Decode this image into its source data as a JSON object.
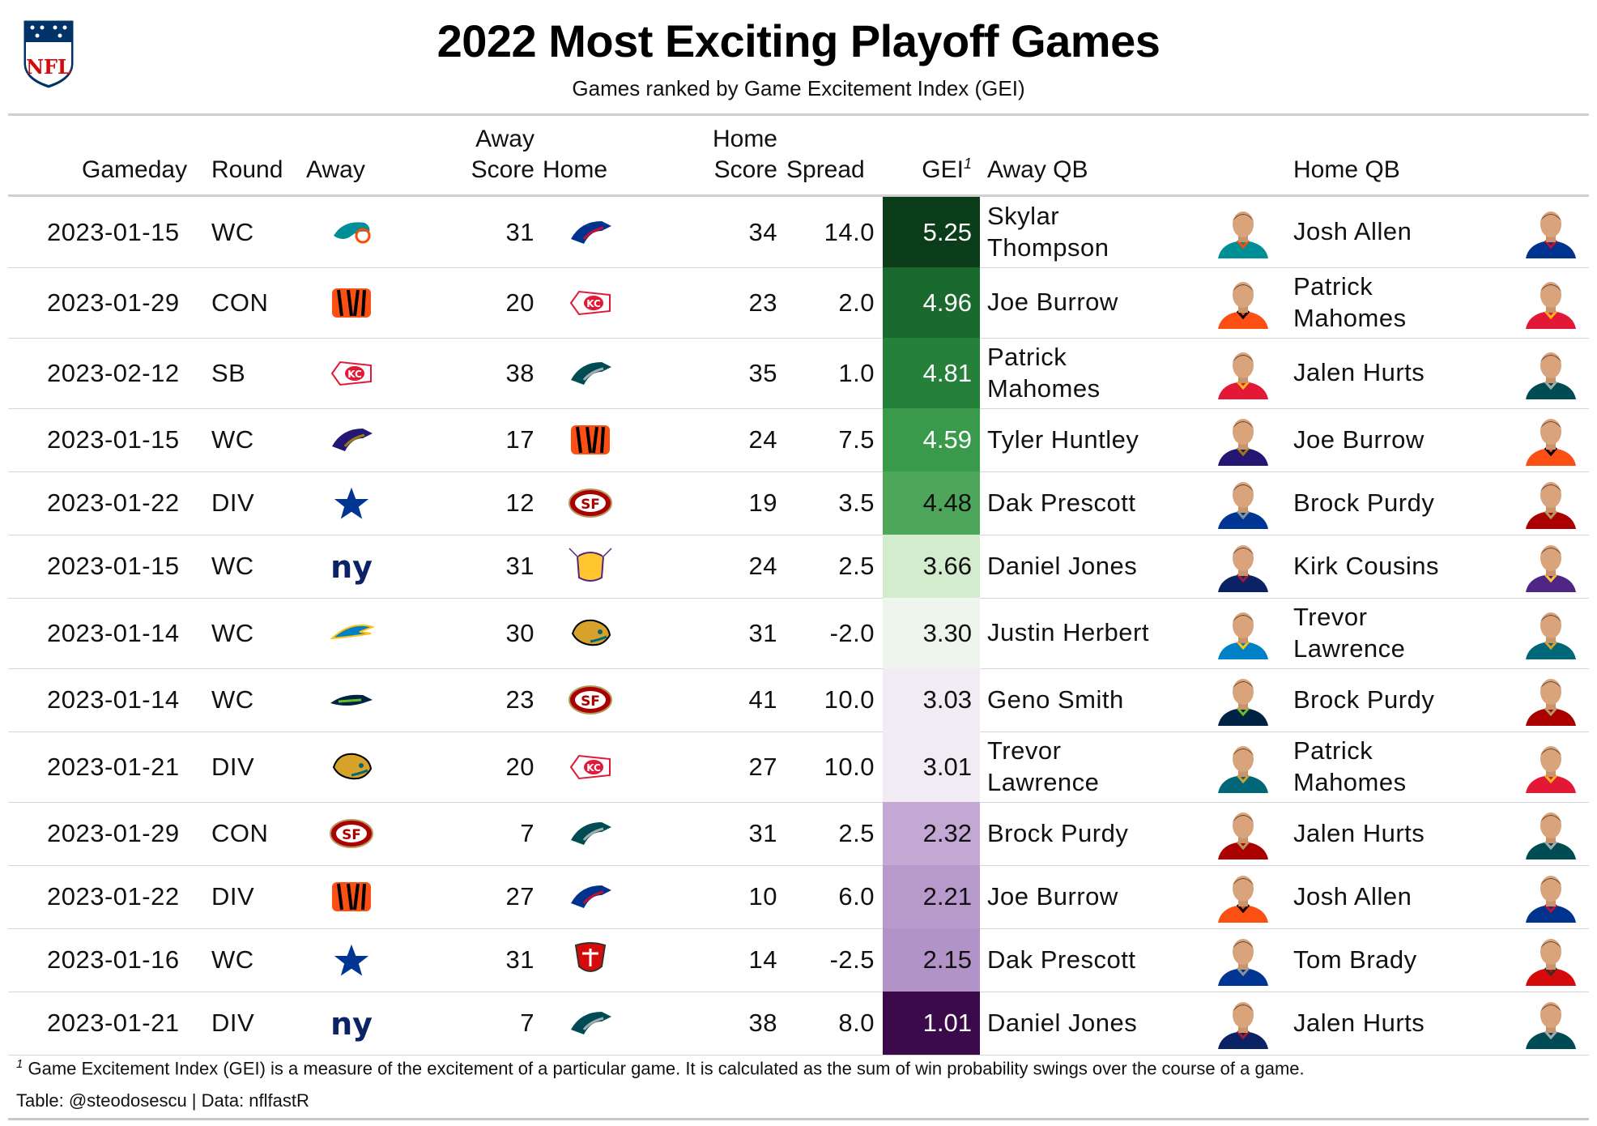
{
  "title": "2022 Most Exciting Playoff Games",
  "subtitle": "Games ranked by Game Excitement Index (GEI)",
  "logo_text": "NFL",
  "columns": {
    "gameday": "Gameday",
    "round": "Round",
    "away": "Away",
    "away_score_1": "Away",
    "away_score_2": "Score",
    "home": "Home",
    "home_score_1": "Home",
    "home_score_2": "Score",
    "spread": "Spread",
    "gei": "GEI",
    "gei_note": "1",
    "away_qb": "Away QB",
    "home_qb": "Home QB"
  },
  "rows": [
    {
      "gameday": "2023-01-15",
      "round": "WC",
      "away": "MIA",
      "away_score": "31",
      "home": "BUF",
      "home_score": "34",
      "spread": "14.0",
      "gei": "5.25",
      "gei_bg": "#0b3d1a",
      "gei_fg": "#ffffff",
      "away_qb": [
        "Skylar",
        "Thompson"
      ],
      "home_qb": [
        "Josh Allen"
      ],
      "away_qb_team": "MIA",
      "home_qb_team": "BUF"
    },
    {
      "gameday": "2023-01-29",
      "round": "CON",
      "away": "CIN",
      "away_score": "20",
      "home": "KC",
      "home_score": "23",
      "spread": "2.0",
      "gei": "4.96",
      "gei_bg": "#1a6a2f",
      "gei_fg": "#ffffff",
      "away_qb": [
        "Joe Burrow"
      ],
      "home_qb": [
        "Patrick",
        "Mahomes"
      ],
      "away_qb_team": "CIN",
      "home_qb_team": "KC"
    },
    {
      "gameday": "2023-02-12",
      "round": "SB",
      "away": "KC",
      "away_score": "38",
      "home": "PHI",
      "home_score": "35",
      "spread": "1.0",
      "gei": "4.81",
      "gei_bg": "#25803a",
      "gei_fg": "#ffffff",
      "away_qb": [
        "Patrick",
        "Mahomes"
      ],
      "home_qb": [
        "Jalen Hurts"
      ],
      "away_qb_team": "KC",
      "home_qb_team": "PHI"
    },
    {
      "gameday": "2023-01-15",
      "round": "WC",
      "away": "BAL",
      "away_score": "17",
      "home": "CIN",
      "home_score": "24",
      "spread": "7.5",
      "gei": "4.59",
      "gei_bg": "#3a9a4c",
      "gei_fg": "#ffffff",
      "away_qb": [
        "Tyler Huntley"
      ],
      "home_qb": [
        "Joe Burrow"
      ],
      "away_qb_team": "BAL",
      "home_qb_team": "CIN"
    },
    {
      "gameday": "2023-01-22",
      "round": "DIV",
      "away": "DAL",
      "away_score": "12",
      "home": "SF",
      "home_score": "19",
      "spread": "3.5",
      "gei": "4.48",
      "gei_bg": "#4ea65a",
      "gei_fg": "#111111",
      "away_qb": [
        "Dak Prescott"
      ],
      "home_qb": [
        "Brock Purdy"
      ],
      "away_qb_team": "DAL",
      "home_qb_team": "SF"
    },
    {
      "gameday": "2023-01-15",
      "round": "WC",
      "away": "NYG",
      "away_score": "31",
      "home": "MIN",
      "home_score": "24",
      "spread": "2.5",
      "gei": "3.66",
      "gei_bg": "#d4ecce",
      "gei_fg": "#111111",
      "away_qb": [
        "Daniel Jones"
      ],
      "home_qb": [
        "Kirk Cousins"
      ],
      "away_qb_team": "NYG",
      "home_qb_team": "MIN"
    },
    {
      "gameday": "2023-01-14",
      "round": "WC",
      "away": "LAC",
      "away_score": "30",
      "home": "JAX",
      "home_score": "31",
      "spread": "-2.0",
      "gei": "3.30",
      "gei_bg": "#eef5ec",
      "gei_fg": "#111111",
      "away_qb": [
        "Justin Herbert"
      ],
      "home_qb": [
        "Trevor",
        "Lawrence"
      ],
      "away_qb_team": "LAC",
      "home_qb_team": "JAX"
    },
    {
      "gameday": "2023-01-14",
      "round": "WC",
      "away": "SEA",
      "away_score": "23",
      "home": "SF",
      "home_score": "41",
      "spread": "10.0",
      "gei": "3.03",
      "gei_bg": "#f1ecf4",
      "gei_fg": "#111111",
      "away_qb": [
        "Geno Smith"
      ],
      "home_qb": [
        "Brock Purdy"
      ],
      "away_qb_team": "SEA",
      "home_qb_team": "SF"
    },
    {
      "gameday": "2023-01-21",
      "round": "DIV",
      "away": "JAX",
      "away_score": "20",
      "home": "KC",
      "home_score": "27",
      "spread": "10.0",
      "gei": "3.01",
      "gei_bg": "#f1ecf4",
      "gei_fg": "#111111",
      "away_qb": [
        "Trevor",
        "Lawrence"
      ],
      "home_qb": [
        "Patrick",
        "Mahomes"
      ],
      "away_qb_team": "JAX",
      "home_qb_team": "KC"
    },
    {
      "gameday": "2023-01-29",
      "round": "CON",
      "away": "SF",
      "away_score": "7",
      "home": "PHI",
      "home_score": "31",
      "spread": "2.5",
      "gei": "2.32",
      "gei_bg": "#c4a8d4",
      "gei_fg": "#111111",
      "away_qb": [
        "Brock Purdy"
      ],
      "home_qb": [
        "Jalen Hurts"
      ],
      "away_qb_team": "SF",
      "home_qb_team": "PHI"
    },
    {
      "gameday": "2023-01-22",
      "round": "DIV",
      "away": "CIN",
      "away_score": "27",
      "home": "BUF",
      "home_score": "10",
      "spread": "6.0",
      "gei": "2.21",
      "gei_bg": "#b899cc",
      "gei_fg": "#111111",
      "away_qb": [
        "Joe Burrow"
      ],
      "home_qb": [
        "Josh Allen"
      ],
      "away_qb_team": "CIN",
      "home_qb_team": "BUF"
    },
    {
      "gameday": "2023-01-16",
      "round": "WC",
      "away": "DAL",
      "away_score": "31",
      "home": "TB",
      "home_score": "14",
      "spread": "-2.5",
      "gei": "2.15",
      "gei_bg": "#b293c8",
      "gei_fg": "#111111",
      "away_qb": [
        "Dak Prescott"
      ],
      "home_qb": [
        "Tom Brady"
      ],
      "away_qb_team": "DAL",
      "home_qb_team": "TB"
    },
    {
      "gameday": "2023-01-21",
      "round": "DIV",
      "away": "NYG",
      "away_score": "7",
      "home": "PHI",
      "home_score": "38",
      "spread": "8.0",
      "gei": "1.01",
      "gei_bg": "#3b0a4a",
      "gei_fg": "#ffffff",
      "away_qb": [
        "Daniel Jones"
      ],
      "home_qb": [
        "Jalen Hurts"
      ],
      "away_qb_team": "NYG",
      "home_qb_team": "PHI"
    }
  ],
  "teams": {
    "MIA": {
      "primary": "#008e97",
      "secondary": "#fc4c02",
      "icon": "dolphin-logo"
    },
    "BUF": {
      "primary": "#00338d",
      "secondary": "#c60c30",
      "icon": "bills-logo"
    },
    "CIN": {
      "primary": "#fb4f14",
      "secondary": "#000000",
      "icon": "bengals-logo"
    },
    "KC": {
      "primary": "#e31837",
      "secondary": "#ffb81c",
      "icon": "chiefs-logo"
    },
    "PHI": {
      "primary": "#004c54",
      "secondary": "#a5acaf",
      "icon": "eagles-logo"
    },
    "BAL": {
      "primary": "#241773",
      "secondary": "#9e7c0c",
      "icon": "ravens-logo"
    },
    "DAL": {
      "primary": "#003594",
      "secondary": "#869397",
      "icon": "cowboys-logo"
    },
    "SF": {
      "primary": "#aa0000",
      "secondary": "#b3995d",
      "icon": "49ers-logo"
    },
    "NYG": {
      "primary": "#0b2265",
      "secondary": "#a71930",
      "icon": "giants-logo"
    },
    "MIN": {
      "primary": "#4f2683",
      "secondary": "#ffc62f",
      "icon": "vikings-logo"
    },
    "LAC": {
      "primary": "#0080c6",
      "secondary": "#ffc20e",
      "icon": "chargers-logo"
    },
    "JAX": {
      "primary": "#006778",
      "secondary": "#d7a22a",
      "icon": "jaguars-logo"
    },
    "SEA": {
      "primary": "#002244",
      "secondary": "#69be28",
      "icon": "seahawks-logo"
    },
    "TB": {
      "primary": "#d50a0a",
      "secondary": "#34302b",
      "icon": "buccaneers-logo"
    }
  },
  "footnote_mark": "1",
  "footnote": "Game Excitement Index (GEI) is a measure of the excitement of a particular game. It is calculated as the sum of win probability swings over the course of a game.",
  "credit": "Table: @steodosescu | Data: nflfastR"
}
